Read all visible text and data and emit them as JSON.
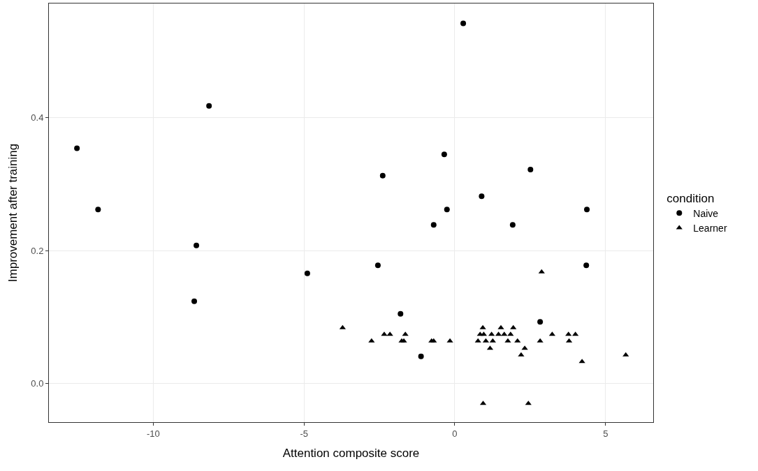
{
  "chart_data": {
    "type": "scatter",
    "xlabel": "Attention composite score",
    "ylabel": "Improvement after training",
    "legend_title": "condition",
    "legend": "right",
    "grid": true,
    "xlim": [
      -13.46,
      6.58
    ],
    "ylim": [
      -0.058,
      0.572
    ],
    "xticks": [
      -10,
      -5,
      0,
      5
    ],
    "yticks": [
      {
        "value": 0,
        "label": "0.0"
      },
      0.2,
      0.4
    ],
    "series": [
      {
        "name": "Naive",
        "color": "#000000",
        "marker": "circle",
        "x": [
          -12.53,
          -11.83,
          -8.15,
          -8.57,
          -8.64,
          -4.89,
          -2.55,
          -2.39,
          -1.8,
          -1.12,
          -0.7,
          -0.35,
          -0.26,
          0.28,
          0.89,
          1.92,
          2.51,
          2.83,
          4.38,
          4.36
        ],
        "values": [
          0.354,
          0.262,
          0.418,
          0.208,
          0.124,
          0.166,
          0.178,
          0.313,
          0.105,
          0.041,
          0.239,
          0.345,
          0.262,
          0.542,
          0.282,
          0.239,
          0.322,
          0.093,
          0.262,
          0.178
        ]
      },
      {
        "name": "Learner",
        "color": "#000000",
        "marker": "triangle",
        "x": [
          -3.72,
          0.93,
          1.53,
          1.94,
          2.88,
          -2.34,
          -2.15,
          -1.64,
          0.84,
          0.96,
          1.22,
          1.45,
          1.64,
          1.85,
          3.23,
          3.77,
          4.0,
          -2.76,
          -1.76,
          -1.69,
          -0.77,
          -0.7,
          -0.16,
          0.77,
          1.03,
          1.26,
          1.76,
          2.08,
          2.83,
          3.79,
          1.17,
          2.32,
          2.2,
          5.67,
          4.22,
          0.94,
          2.44
        ],
        "values": [
          0.084,
          0.084,
          0.084,
          0.084,
          0.168,
          0.074,
          0.074,
          0.074,
          0.074,
          0.074,
          0.074,
          0.074,
          0.074,
          0.074,
          0.074,
          0.074,
          0.074,
          0.064,
          0.064,
          0.064,
          0.064,
          0.064,
          0.064,
          0.064,
          0.064,
          0.064,
          0.064,
          0.064,
          0.064,
          0.064,
          0.053,
          0.053,
          0.043,
          0.043,
          0.033,
          -0.03,
          -0.03
        ]
      }
    ]
  }
}
